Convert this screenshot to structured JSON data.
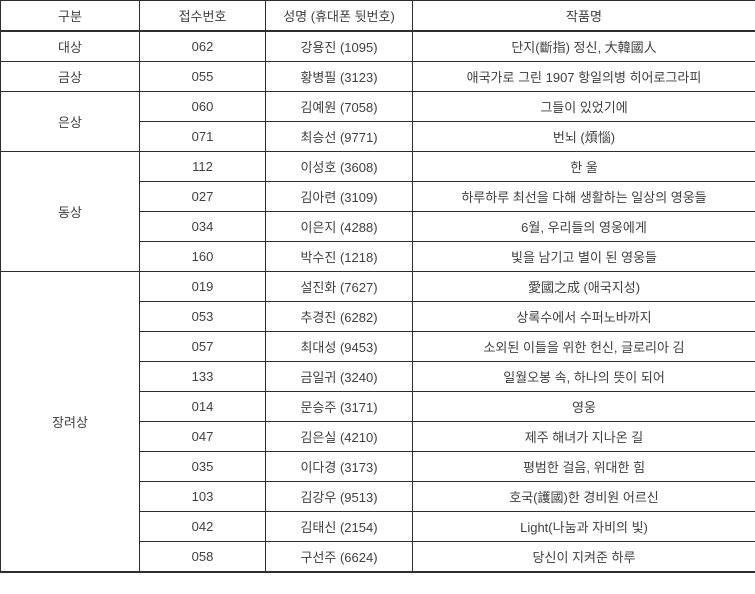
{
  "table": {
    "columns": [
      "구분",
      "접수번호",
      "성명 (휴대폰 뒷번호)",
      "작품명"
    ],
    "groups": [
      {
        "category": "대상",
        "rows": [
          {
            "number": "062",
            "name": "강용진 (1095)",
            "title": "단지(斷指) 정신, 大韓國人"
          }
        ]
      },
      {
        "category": "금상",
        "rows": [
          {
            "number": "055",
            "name": "황병필 (3123)",
            "title": "애국가로 그린 1907 항일의병 히어로그라피"
          }
        ]
      },
      {
        "category": "은상",
        "rows": [
          {
            "number": "060",
            "name": "김예원 (7058)",
            "title": "그들이 있었기에"
          },
          {
            "number": "071",
            "name": "최승선 (9771)",
            "title": "번뇌 (煩惱)"
          }
        ]
      },
      {
        "category": "동상",
        "rows": [
          {
            "number": "112",
            "name": "이성호 (3608)",
            "title": "한 울"
          },
          {
            "number": "027",
            "name": "김아련 (3109)",
            "title": "하루하루 최선을 다해 생활하는 일상의 영웅들"
          },
          {
            "number": "034",
            "name": "이은지 (4288)",
            "title": "6월, 우리들의 영웅에게"
          },
          {
            "number": "160",
            "name": "박수진 (1218)",
            "title": "빛을 남기고 별이 된 영웅들"
          }
        ]
      },
      {
        "category": "장려상",
        "rows": [
          {
            "number": "019",
            "name": "설진화 (7627)",
            "title": "愛國之成 (애국지성)"
          },
          {
            "number": "053",
            "name": "추경진 (6282)",
            "title": "상록수에서 수퍼노바까지"
          },
          {
            "number": "057",
            "name": "최대성 (9453)",
            "title": "소외된 이들을 위한 헌신, 글로리아 김"
          },
          {
            "number": "133",
            "name": "금일귀 (3240)",
            "title": "일월오봉 속, 하나의 뜻이 되어"
          },
          {
            "number": "014",
            "name": "문승주 (3171)",
            "title": "영웅"
          },
          {
            "number": "047",
            "name": "김은실 (4210)",
            "title": "제주 해녀가 지나온 길"
          },
          {
            "number": "035",
            "name": "이다경 (3173)",
            "title": "평범한 걸음, 위대한 힘"
          },
          {
            "number": "103",
            "name": "김강우 (9513)",
            "title": "호국(護國)한 경비원 어르신"
          },
          {
            "number": "042",
            "name": "김태신 (2154)",
            "title": "Light(나눔과 자비의 빛)"
          },
          {
            "number": "058",
            "name": "구선주 (6624)",
            "title": "당신이 지켜준 하루"
          }
        ]
      }
    ],
    "colors": {
      "border": "#2e2e2e",
      "text": "#404040",
      "background": "#ffffff"
    }
  }
}
